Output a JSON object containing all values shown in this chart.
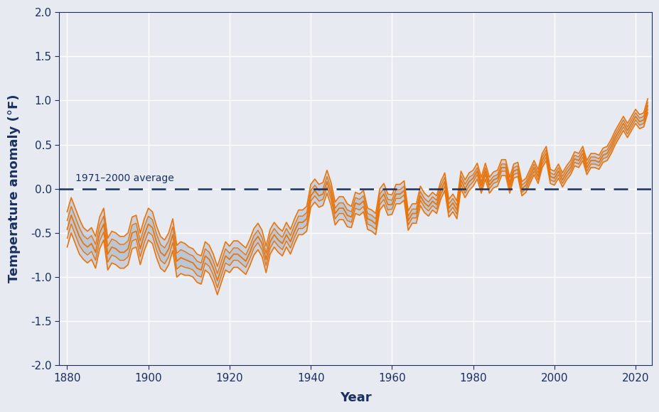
{
  "xlabel": "Year",
  "ylabel": "Temperature anomaly (°F)",
  "avg_label": "1971–2000 average",
  "bg_color": "#e8eaf2",
  "plot_bg_color": "#e8eaf2",
  "line_color": "#e8740a",
  "band_fill_color": "#b0bece",
  "avg_line_color": "#1a3060",
  "grid_color": "#ffffff",
  "axis_color": "#1a3060",
  "ylim": [
    -2.0,
    2.0
  ],
  "xlim": [
    1878,
    2024
  ],
  "yticks": [
    -2.0,
    -1.5,
    -1.0,
    -0.5,
    0.0,
    0.5,
    1.0,
    1.5,
    2.0
  ],
  "xticks": [
    1880,
    1900,
    1920,
    1940,
    1960,
    1980,
    2000,
    2020
  ],
  "years": [
    1880,
    1881,
    1882,
    1883,
    1884,
    1885,
    1886,
    1887,
    1888,
    1889,
    1890,
    1891,
    1892,
    1893,
    1894,
    1895,
    1896,
    1897,
    1898,
    1899,
    1900,
    1901,
    1902,
    1903,
    1904,
    1905,
    1906,
    1907,
    1908,
    1909,
    1910,
    1911,
    1912,
    1913,
    1914,
    1915,
    1916,
    1917,
    1918,
    1919,
    1920,
    1921,
    1922,
    1923,
    1924,
    1925,
    1926,
    1927,
    1928,
    1929,
    1930,
    1931,
    1932,
    1933,
    1934,
    1935,
    1936,
    1937,
    1938,
    1939,
    1940,
    1941,
    1942,
    1943,
    1944,
    1945,
    1946,
    1947,
    1948,
    1949,
    1950,
    1951,
    1952,
    1953,
    1954,
    1955,
    1956,
    1957,
    1958,
    1959,
    1960,
    1961,
    1962,
    1963,
    1964,
    1965,
    1966,
    1967,
    1968,
    1969,
    1970,
    1971,
    1972,
    1973,
    1974,
    1975,
    1976,
    1977,
    1978,
    1979,
    1980,
    1981,
    1982,
    1983,
    1984,
    1985,
    1986,
    1987,
    1988,
    1989,
    1990,
    1991,
    1992,
    1993,
    1994,
    1995,
    1996,
    1997,
    1998,
    1999,
    2000,
    2001,
    2002,
    2003,
    2004,
    2005,
    2006,
    2007,
    2008,
    2009,
    2010,
    2011,
    2012,
    2013,
    2014,
    2015,
    2016,
    2017,
    2018,
    2019,
    2020,
    2021,
    2022,
    2023
  ],
  "anomaly": [
    -0.46,
    -0.3,
    -0.42,
    -0.54,
    -0.62,
    -0.66,
    -0.62,
    -0.72,
    -0.5,
    -0.4,
    -0.74,
    -0.66,
    -0.68,
    -0.72,
    -0.72,
    -0.68,
    -0.5,
    -0.48,
    -0.68,
    -0.52,
    -0.4,
    -0.44,
    -0.6,
    -0.72,
    -0.76,
    -0.68,
    -0.52,
    -0.82,
    -0.78,
    -0.8,
    -0.82,
    -0.84,
    -0.9,
    -0.92,
    -0.76,
    -0.8,
    -0.9,
    -1.04,
    -0.9,
    -0.76,
    -0.8,
    -0.74,
    -0.74,
    -0.78,
    -0.82,
    -0.72,
    -0.6,
    -0.54,
    -0.62,
    -0.8,
    -0.6,
    -0.52,
    -0.58,
    -0.62,
    -0.52,
    -0.6,
    -0.48,
    -0.38,
    -0.38,
    -0.34,
    -0.08,
    -0.02,
    -0.08,
    -0.06,
    0.08,
    -0.06,
    -0.28,
    -0.22,
    -0.22,
    -0.3,
    -0.32,
    -0.16,
    -0.18,
    -0.14,
    -0.34,
    -0.36,
    -0.4,
    -0.12,
    -0.06,
    -0.18,
    -0.18,
    -0.06,
    -0.06,
    -0.02,
    -0.36,
    -0.28,
    -0.28,
    -0.08,
    -0.16,
    -0.2,
    -0.14,
    -0.18,
    -0.02,
    0.08,
    -0.22,
    -0.16,
    -0.24,
    0.1,
    0.0,
    0.08,
    0.12,
    0.2,
    0.04,
    0.2,
    0.04,
    0.1,
    0.12,
    0.24,
    0.24,
    0.04,
    0.2,
    0.22,
    0.0,
    0.04,
    0.14,
    0.24,
    0.14,
    0.32,
    0.4,
    0.14,
    0.12,
    0.2,
    0.1,
    0.18,
    0.24,
    0.34,
    0.32,
    0.4,
    0.24,
    0.32,
    0.32,
    0.3,
    0.38,
    0.4,
    0.48,
    0.58,
    0.66,
    0.74,
    0.66,
    0.74,
    0.82,
    0.76,
    0.78,
    0.94
  ],
  "uncertainty_inner": [
    0.1,
    0.1,
    0.1,
    0.1,
    0.09,
    0.09,
    0.09,
    0.09,
    0.09,
    0.09,
    0.09,
    0.09,
    0.09,
    0.09,
    0.09,
    0.09,
    0.09,
    0.09,
    0.09,
    0.09,
    0.09,
    0.09,
    0.09,
    0.09,
    0.09,
    0.09,
    0.09,
    0.09,
    0.09,
    0.09,
    0.08,
    0.08,
    0.08,
    0.08,
    0.08,
    0.08,
    0.08,
    0.08,
    0.08,
    0.08,
    0.07,
    0.07,
    0.07,
    0.07,
    0.07,
    0.07,
    0.07,
    0.07,
    0.07,
    0.07,
    0.07,
    0.07,
    0.07,
    0.07,
    0.07,
    0.07,
    0.07,
    0.07,
    0.07,
    0.07,
    0.06,
    0.06,
    0.06,
    0.06,
    0.06,
    0.06,
    0.06,
    0.06,
    0.06,
    0.06,
    0.06,
    0.06,
    0.06,
    0.06,
    0.06,
    0.06,
    0.06,
    0.06,
    0.06,
    0.06,
    0.05,
    0.05,
    0.05,
    0.05,
    0.05,
    0.05,
    0.05,
    0.05,
    0.05,
    0.05,
    0.05,
    0.05,
    0.05,
    0.05,
    0.05,
    0.05,
    0.05,
    0.05,
    0.05,
    0.05,
    0.04,
    0.04,
    0.04,
    0.04,
    0.04,
    0.04,
    0.04,
    0.04,
    0.04,
    0.04,
    0.04,
    0.04,
    0.04,
    0.04,
    0.04,
    0.04,
    0.04,
    0.04,
    0.04,
    0.04,
    0.04,
    0.04,
    0.04,
    0.04,
    0.04,
    0.04,
    0.04,
    0.04,
    0.04,
    0.04,
    0.04,
    0.04,
    0.04,
    0.04,
    0.04,
    0.04,
    0.04,
    0.04,
    0.04,
    0.04,
    0.04,
    0.04,
    0.04,
    0.04
  ],
  "uncertainty_outer": [
    0.2,
    0.2,
    0.2,
    0.2,
    0.18,
    0.18,
    0.18,
    0.18,
    0.18,
    0.18,
    0.18,
    0.18,
    0.18,
    0.18,
    0.18,
    0.18,
    0.18,
    0.18,
    0.18,
    0.18,
    0.18,
    0.18,
    0.18,
    0.18,
    0.18,
    0.18,
    0.18,
    0.18,
    0.18,
    0.18,
    0.16,
    0.16,
    0.16,
    0.16,
    0.16,
    0.16,
    0.16,
    0.16,
    0.16,
    0.16,
    0.15,
    0.15,
    0.15,
    0.15,
    0.15,
    0.15,
    0.15,
    0.15,
    0.15,
    0.15,
    0.14,
    0.14,
    0.14,
    0.14,
    0.14,
    0.14,
    0.14,
    0.14,
    0.14,
    0.14,
    0.13,
    0.13,
    0.13,
    0.13,
    0.13,
    0.13,
    0.13,
    0.13,
    0.13,
    0.13,
    0.12,
    0.12,
    0.12,
    0.12,
    0.12,
    0.12,
    0.12,
    0.12,
    0.12,
    0.12,
    0.11,
    0.11,
    0.11,
    0.11,
    0.11,
    0.11,
    0.11,
    0.11,
    0.11,
    0.11,
    0.1,
    0.1,
    0.1,
    0.1,
    0.1,
    0.1,
    0.1,
    0.1,
    0.1,
    0.1,
    0.09,
    0.09,
    0.09,
    0.09,
    0.09,
    0.09,
    0.09,
    0.09,
    0.09,
    0.09,
    0.08,
    0.08,
    0.08,
    0.08,
    0.08,
    0.08,
    0.08,
    0.08,
    0.08,
    0.08,
    0.08,
    0.08,
    0.08,
    0.08,
    0.08,
    0.08,
    0.08,
    0.08,
    0.08,
    0.08,
    0.08,
    0.08,
    0.08,
    0.08,
    0.08,
    0.08,
    0.08,
    0.08,
    0.08,
    0.08,
    0.08,
    0.08,
    0.08,
    0.08
  ]
}
